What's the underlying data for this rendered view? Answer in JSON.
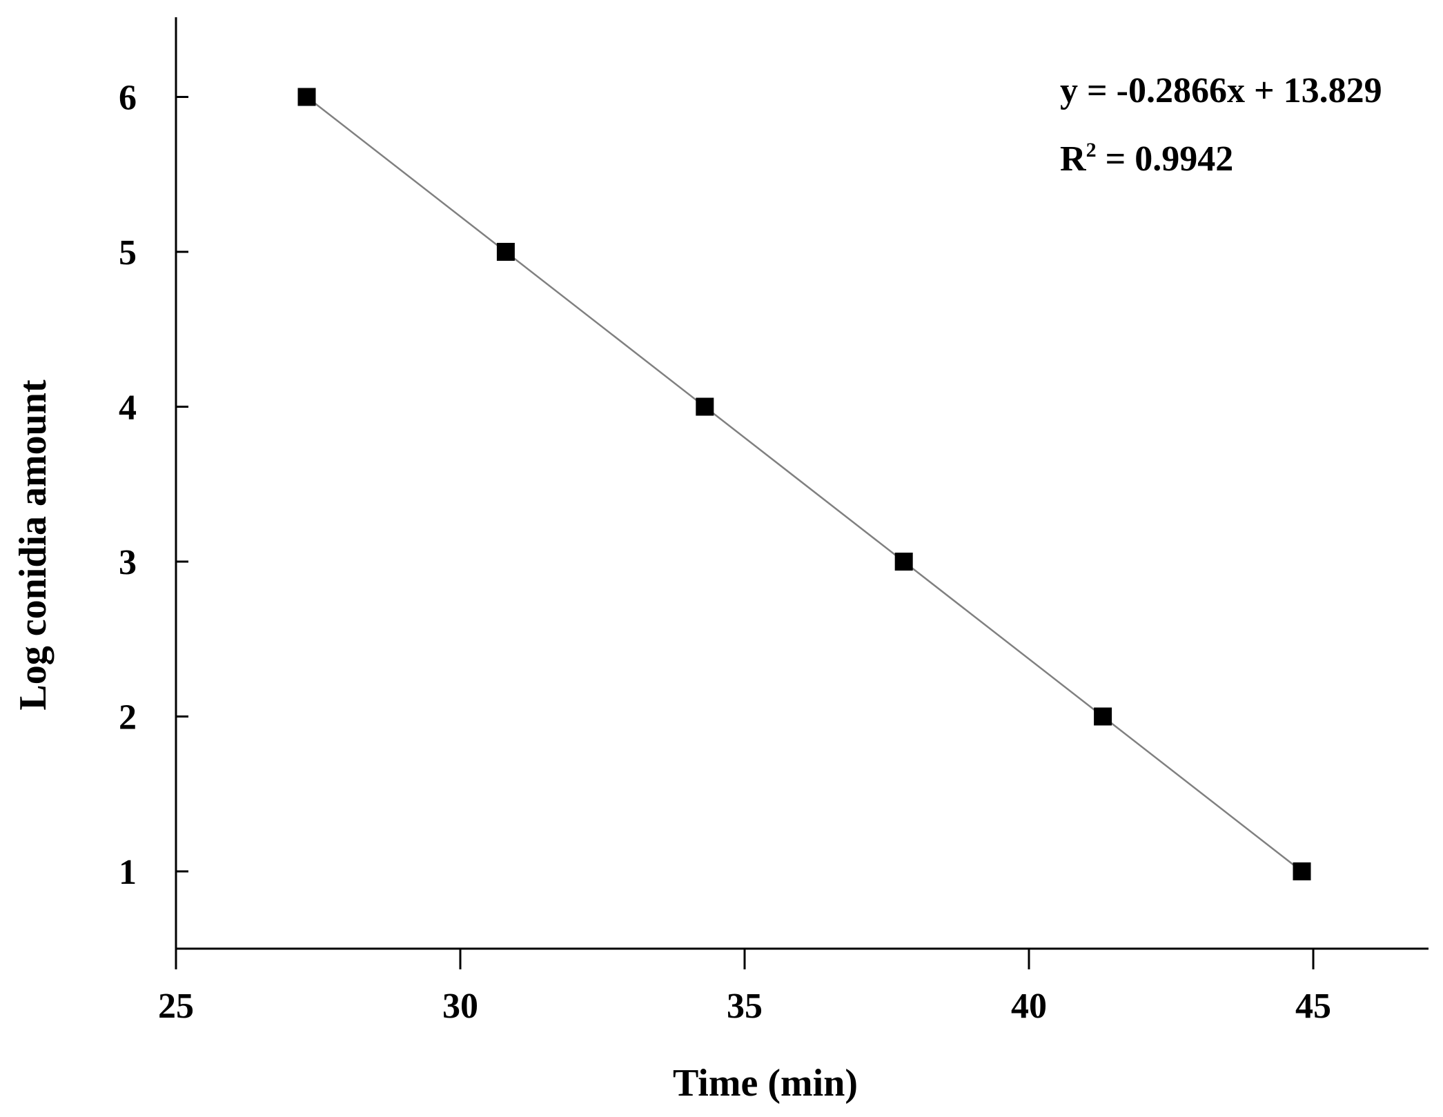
{
  "chart_data": {
    "type": "scatter",
    "title": "",
    "xlabel": "Time (min)",
    "ylabel": "Log conidia amount",
    "xlim": [
      25,
      47
    ],
    "ylim": [
      0.5,
      6.5
    ],
    "xticks": [
      25,
      30,
      35,
      40,
      45
    ],
    "yticks": [
      1,
      2,
      3,
      4,
      5,
      6
    ],
    "grid": false,
    "legend": "none",
    "series": [
      {
        "marker": "square",
        "line": "linear-trendline",
        "color": "#000000",
        "line_color": "#808080",
        "x": [
          27.3,
          30.8,
          34.3,
          37.8,
          41.3,
          44.8
        ],
        "y": [
          6,
          5,
          4,
          3,
          2,
          1
        ]
      }
    ],
    "annotations": {
      "equation": "y = -0.2866x + 13.829",
      "r2_prefix": "R",
      "r2_sup": "2",
      "r2_value": " = 0.9942"
    }
  }
}
